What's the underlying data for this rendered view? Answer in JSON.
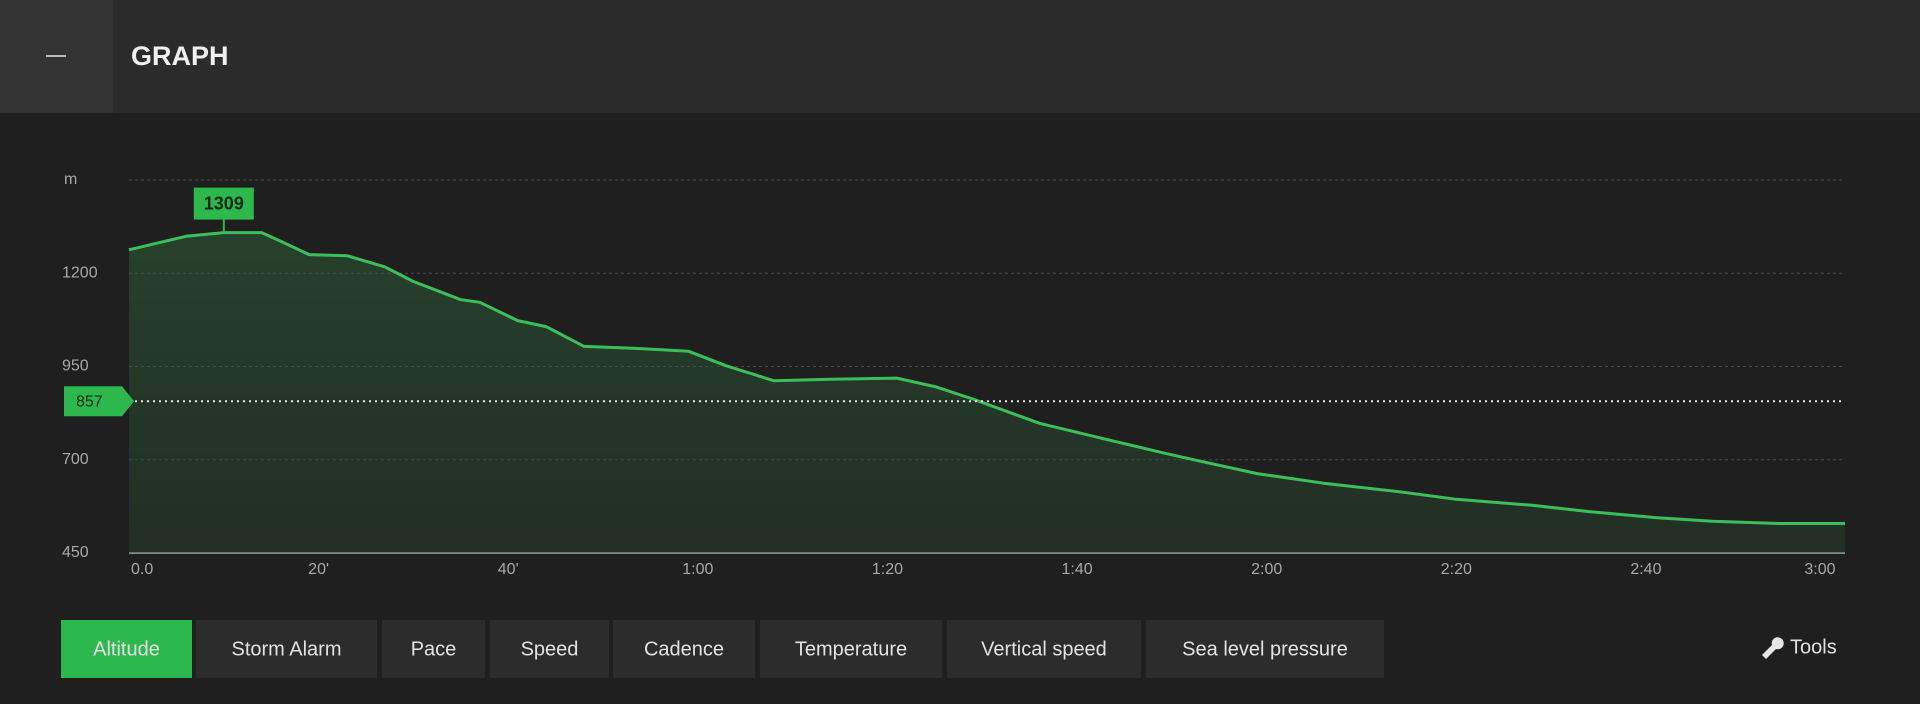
{
  "header": {
    "title": "GRAPH"
  },
  "chart_data": {
    "type": "area",
    "y_unit": "m",
    "color": "#3cbf5b",
    "x": [
      0,
      6,
      10,
      14,
      16,
      19,
      23,
      27,
      30,
      35,
      37,
      41,
      44,
      48,
      54,
      59,
      63,
      68,
      74,
      81,
      85,
      89,
      96,
      103,
      109,
      113,
      119,
      126,
      134,
      140,
      148,
      154,
      161,
      167,
      174,
      181
    ],
    "values": [
      1263,
      1299,
      1309,
      1309,
      1286,
      1250,
      1247,
      1217,
      1178,
      1129,
      1122,
      1073,
      1057,
      1004,
      998,
      991,
      952,
      912,
      916,
      919,
      896,
      863,
      798,
      755,
      719,
      696,
      663,
      637,
      614,
      594,
      578,
      561,
      545,
      535,
      529,
      529
    ],
    "xlim": [
      0,
      181
    ],
    "ylim": [
      450,
      1450
    ],
    "xticks": [
      {
        "value": 0,
        "label": "0.0"
      },
      {
        "value": 20,
        "label": "20'"
      },
      {
        "value": 40,
        "label": "40'"
      },
      {
        "value": 60,
        "label": "1:00"
      },
      {
        "value": 80,
        "label": "1:20"
      },
      {
        "value": 100,
        "label": "1:40"
      },
      {
        "value": 120,
        "label": "2:00"
      },
      {
        "value": 140,
        "label": "2:20"
      },
      {
        "value": 160,
        "label": "2:40"
      },
      {
        "value": 180,
        "label": "3:00"
      }
    ],
    "yticks": [
      450,
      700,
      950,
      1200
    ],
    "grid": true,
    "max_label": 1309,
    "reference_line": 857
  },
  "tabs": [
    {
      "label": "Altitude",
      "active": true
    },
    {
      "label": "Storm Alarm",
      "active": false
    },
    {
      "label": "Pace",
      "active": false
    },
    {
      "label": "Speed",
      "active": false
    },
    {
      "label": "Cadence",
      "active": false
    },
    {
      "label": "Temperature",
      "active": false
    },
    {
      "label": "Vertical speed",
      "active": false
    },
    {
      "label": "Sea level pressure",
      "active": false
    }
  ],
  "tools": "Tools"
}
